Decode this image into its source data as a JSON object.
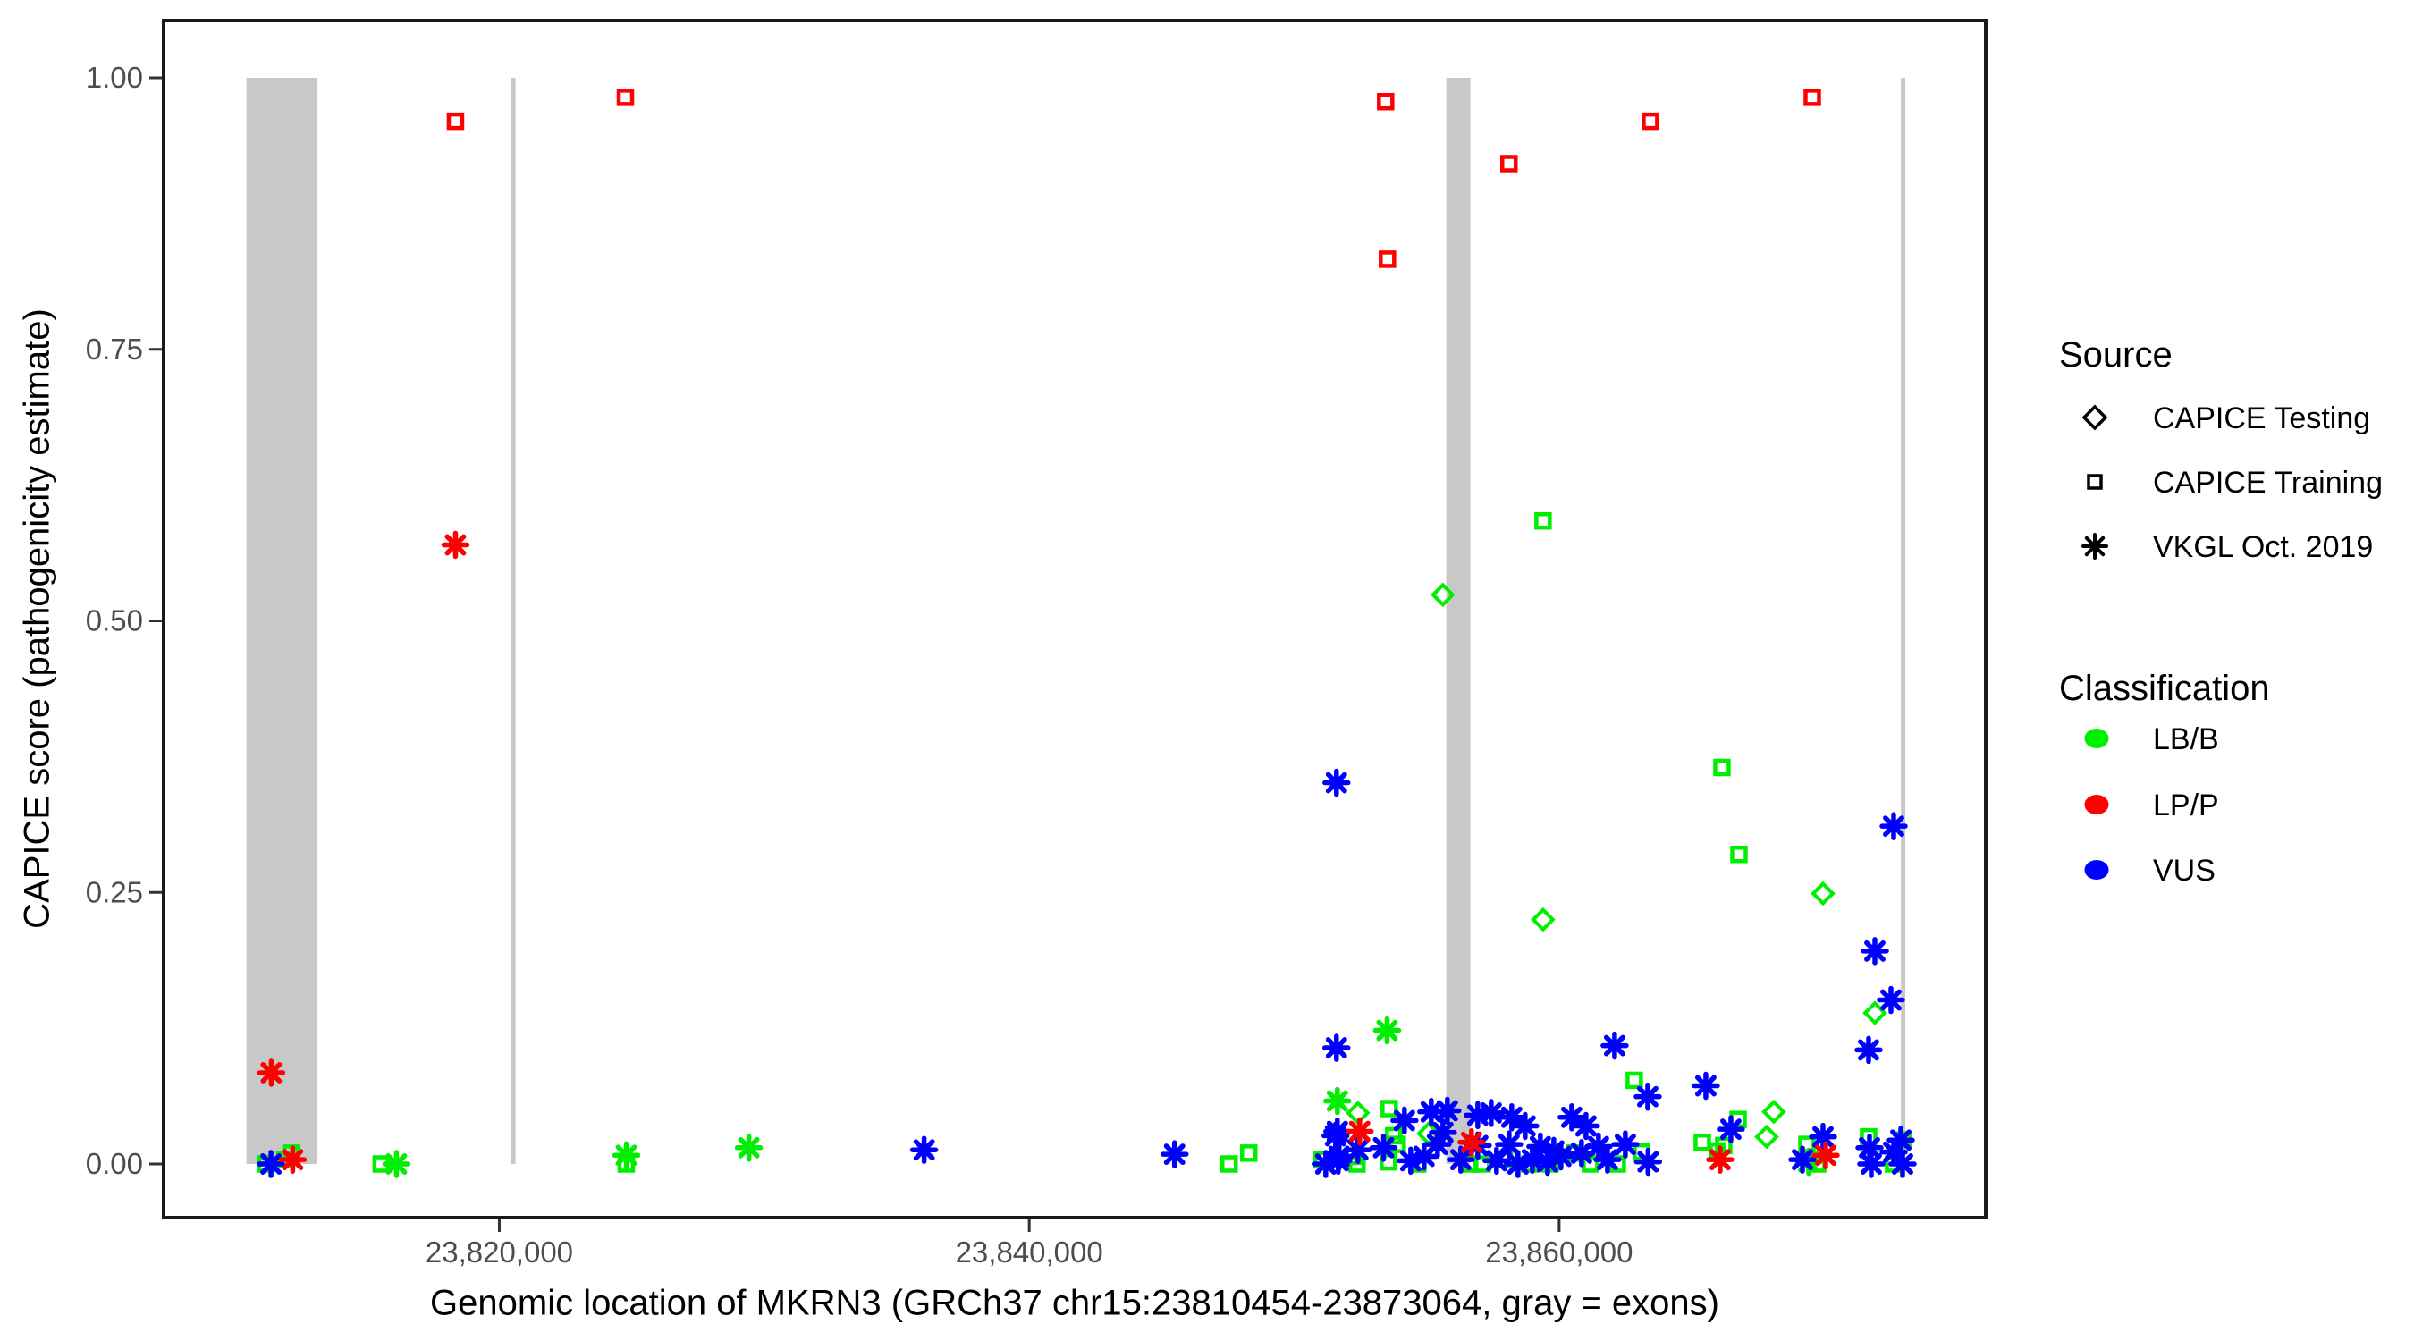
{
  "chart_data": {
    "type": "scatter",
    "xlabel": "Genomic location of MKRN3 (GRCh37 chr15:23810454-23873064, gray = exons)",
    "ylabel": "CAPICE score (pathogenicity estimate)",
    "xlim": [
      23807330,
      23876100
    ],
    "ylim": [
      -0.053,
      1.053
    ],
    "grid": false,
    "x_ticks": [
      {
        "value": 23820000,
        "label": "23,820,000"
      },
      {
        "value": 23840000,
        "label": "23,840,000"
      },
      {
        "value": 23860000,
        "label": "23,860,000"
      }
    ],
    "y_ticks": [
      {
        "value": 0.0,
        "label": "0.00"
      },
      {
        "value": 0.25,
        "label": "0.25"
      },
      {
        "value": 0.5,
        "label": "0.50"
      },
      {
        "value": 0.75,
        "label": "0.75"
      },
      {
        "value": 1.0,
        "label": "1.00"
      }
    ],
    "exon_color": "#C8C8C8",
    "exons": [
      {
        "start": 23810454,
        "end": 23813120
      },
      {
        "start": 23820450,
        "end": 23820610
      },
      {
        "start": 23855740,
        "end": 23856650
      },
      {
        "start": 23872900,
        "end": 23873064
      }
    ],
    "classification_colors": {
      "LB/B": "#00EE00",
      "LP/P": "#FF0000",
      "VUS": "#0000FF"
    },
    "legend": {
      "source": {
        "title": "Source",
        "items": [
          {
            "label": "CAPICE Testing",
            "shape": "diamond"
          },
          {
            "label": "CAPICE Training",
            "shape": "square"
          },
          {
            "label": "VKGL Oct. 2019",
            "shape": "asterisk"
          }
        ]
      },
      "classification": {
        "title": "Classification",
        "items": [
          {
            "label": "LB/B",
            "color": "#00EE00"
          },
          {
            "label": "LP/P",
            "color": "#FF0000"
          },
          {
            "label": "VUS",
            "color": "#0000FF"
          }
        ]
      }
    },
    "points": [
      {
        "pos": 23859392,
        "score": 0.592,
        "shape": "square",
        "cls": "LB/B"
      },
      {
        "pos": 23866144,
        "score": 0.365,
        "shape": "square",
        "cls": "LB/B"
      },
      {
        "pos": 23866786,
        "score": 0.285,
        "shape": "square",
        "cls": "LB/B"
      },
      {
        "pos": 23862835,
        "score": 0.077,
        "shape": "square",
        "cls": "LB/B"
      },
      {
        "pos": 23853587,
        "score": 0.051,
        "shape": "square",
        "cls": "LB/B"
      },
      {
        "pos": 23866752,
        "score": 0.041,
        "shape": "square",
        "cls": "LB/B"
      },
      {
        "pos": 23853755,
        "score": 0.026,
        "shape": "square",
        "cls": "LB/B"
      },
      {
        "pos": 23853891,
        "score": 0.018,
        "shape": "square",
        "cls": "LB/B"
      },
      {
        "pos": 23851055,
        "score": 0.004,
        "shape": "square",
        "cls": "LB/B"
      },
      {
        "pos": 23852236,
        "score": 0.007,
        "shape": "square",
        "cls": "LB/B"
      },
      {
        "pos": 23852371,
        "score": 0.0,
        "shape": "square",
        "cls": "LB/B"
      },
      {
        "pos": 23853553,
        "score": 0.002,
        "shape": "square",
        "cls": "LB/B"
      },
      {
        "pos": 23854667,
        "score": 0.0,
        "shape": "square",
        "cls": "LB/B"
      },
      {
        "pos": 23856624,
        "score": 0.0,
        "shape": "square",
        "cls": "LB/B"
      },
      {
        "pos": 23857097,
        "score": 0.0,
        "shape": "square",
        "cls": "LB/B"
      },
      {
        "pos": 23857941,
        "score": 0.004,
        "shape": "square",
        "cls": "LB/B"
      },
      {
        "pos": 23858886,
        "score": 0.0,
        "shape": "square",
        "cls": "LB/B"
      },
      {
        "pos": 23859663,
        "score": 0.0,
        "shape": "square",
        "cls": "LB/B"
      },
      {
        "pos": 23860574,
        "score": 0.01,
        "shape": "square",
        "cls": "LB/B"
      },
      {
        "pos": 23861182,
        "score": 0.0,
        "shape": "square",
        "cls": "LB/B"
      },
      {
        "pos": 23862194,
        "score": 0.0,
        "shape": "square",
        "cls": "LB/B"
      },
      {
        "pos": 23863106,
        "score": 0.011,
        "shape": "square",
        "cls": "LB/B"
      },
      {
        "pos": 23865401,
        "score": 0.02,
        "shape": "square",
        "cls": "LB/B"
      },
      {
        "pos": 23865975,
        "score": 0.012,
        "shape": "square",
        "cls": "LB/B"
      },
      {
        "pos": 23866211,
        "score": 0.017,
        "shape": "square",
        "cls": "LB/B"
      },
      {
        "pos": 23869350,
        "score": 0.018,
        "shape": "square",
        "cls": "LB/B"
      },
      {
        "pos": 23869755,
        "score": 0.0,
        "shape": "square",
        "cls": "LB/B"
      },
      {
        "pos": 23871679,
        "score": 0.025,
        "shape": "square",
        "cls": "LB/B"
      },
      {
        "pos": 23872996,
        "score": 0.022,
        "shape": "square",
        "cls": "LB/B"
      },
      {
        "pos": 23872624,
        "score": 0.0,
        "shape": "square",
        "cls": "LB/B"
      },
      {
        "pos": 23811190,
        "score": 0.0,
        "shape": "square",
        "cls": "LB/B"
      },
      {
        "pos": 23811899,
        "score": 0.004,
        "shape": "square",
        "cls": "LB/B"
      },
      {
        "pos": 23812135,
        "score": 0.01,
        "shape": "square",
        "cls": "LB/B"
      },
      {
        "pos": 23815544,
        "score": 0.0,
        "shape": "square",
        "cls": "LB/B"
      },
      {
        "pos": 23824793,
        "score": 0.0,
        "shape": "square",
        "cls": "LB/B"
      },
      {
        "pos": 23847544,
        "score": 0.0,
        "shape": "square",
        "cls": "LB/B"
      },
      {
        "pos": 23848287,
        "score": 0.01,
        "shape": "square",
        "cls": "LB/B"
      },
      {
        "pos": 23855612,
        "score": 0.524,
        "shape": "diamond",
        "cls": "LB/B"
      },
      {
        "pos": 23869958,
        "score": 0.249,
        "shape": "diamond",
        "cls": "LB/B"
      },
      {
        "pos": 23859392,
        "score": 0.225,
        "shape": "diamond",
        "cls": "LB/B"
      },
      {
        "pos": 23871916,
        "score": 0.139,
        "shape": "diamond",
        "cls": "LB/B"
      },
      {
        "pos": 23868101,
        "score": 0.048,
        "shape": "diamond",
        "cls": "LB/B"
      },
      {
        "pos": 23852405,
        "score": 0.047,
        "shape": "diamond",
        "cls": "LB/B"
      },
      {
        "pos": 23855072,
        "score": 0.028,
        "shape": "diamond",
        "cls": "LB/B"
      },
      {
        "pos": 23867831,
        "score": 0.025,
        "shape": "diamond",
        "cls": "LB/B"
      },
      {
        "pos": 23853507,
        "score": 0.123,
        "shape": "asterisk",
        "cls": "LB/B"
      },
      {
        "pos": 23851629,
        "score": 0.058,
        "shape": "asterisk",
        "cls": "LB/B"
      },
      {
        "pos": 23816118,
        "score": 0.0,
        "shape": "asterisk",
        "cls": "LB/B"
      },
      {
        "pos": 23824793,
        "score": 0.008,
        "shape": "asterisk",
        "cls": "LB/B"
      },
      {
        "pos": 23829418,
        "score": 0.015,
        "shape": "asterisk",
        "cls": "LB/B"
      },
      {
        "pos": 23869417,
        "score": 0.002,
        "shape": "asterisk",
        "cls": "LB/B"
      },
      {
        "pos": 23851595,
        "score": 0.351,
        "shape": "asterisk",
        "cls": "VUS"
      },
      {
        "pos": 23872624,
        "score": 0.311,
        "shape": "asterisk",
        "cls": "VUS"
      },
      {
        "pos": 23871916,
        "score": 0.196,
        "shape": "asterisk",
        "cls": "VUS"
      },
      {
        "pos": 23872523,
        "score": 0.151,
        "shape": "asterisk",
        "cls": "VUS"
      },
      {
        "pos": 23871679,
        "score": 0.105,
        "shape": "asterisk",
        "cls": "VUS"
      },
      {
        "pos": 23851595,
        "score": 0.107,
        "shape": "asterisk",
        "cls": "VUS"
      },
      {
        "pos": 23862093,
        "score": 0.109,
        "shape": "asterisk",
        "cls": "VUS"
      },
      {
        "pos": 23865536,
        "score": 0.072,
        "shape": "asterisk",
        "cls": "VUS"
      },
      {
        "pos": 23863342,
        "score": 0.062,
        "shape": "asterisk",
        "cls": "VUS"
      },
      {
        "pos": 23845485,
        "score": 0.009,
        "shape": "asterisk",
        "cls": "VUS"
      },
      {
        "pos": 23836034,
        "score": 0.013,
        "shape": "asterisk",
        "cls": "VUS"
      },
      {
        "pos": 23811382,
        "score": 0.0,
        "shape": "asterisk",
        "cls": "VUS"
      },
      {
        "pos": 23851629,
        "score": 0.03,
        "shape": "asterisk",
        "cls": "VUS"
      },
      {
        "pos": 23851696,
        "score": 0.007,
        "shape": "asterisk",
        "cls": "VUS"
      },
      {
        "pos": 23851190,
        "score": 0.0,
        "shape": "asterisk",
        "cls": "VUS"
      },
      {
        "pos": 23851561,
        "score": 0.026,
        "shape": "asterisk",
        "cls": "VUS"
      },
      {
        "pos": 23851662,
        "score": 0.003,
        "shape": "asterisk",
        "cls": "VUS"
      },
      {
        "pos": 23852405,
        "score": 0.013,
        "shape": "asterisk",
        "cls": "VUS"
      },
      {
        "pos": 23853373,
        "score": 0.015,
        "shape": "asterisk",
        "cls": "VUS"
      },
      {
        "pos": 23854161,
        "score": 0.04,
        "shape": "asterisk",
        "cls": "VUS"
      },
      {
        "pos": 23855173,
        "score": 0.048,
        "shape": "asterisk",
        "cls": "VUS"
      },
      {
        "pos": 23855612,
        "score": 0.029,
        "shape": "asterisk",
        "cls": "VUS"
      },
      {
        "pos": 23855409,
        "score": 0.018,
        "shape": "asterisk",
        "cls": "VUS"
      },
      {
        "pos": 23854903,
        "score": 0.007,
        "shape": "asterisk",
        "cls": "VUS"
      },
      {
        "pos": 23854397,
        "score": 0.003,
        "shape": "asterisk",
        "cls": "VUS"
      },
      {
        "pos": 23855781,
        "score": 0.049,
        "shape": "asterisk",
        "cls": "VUS"
      },
      {
        "pos": 23856929,
        "score": 0.045,
        "shape": "asterisk",
        "cls": "VUS"
      },
      {
        "pos": 23857435,
        "score": 0.047,
        "shape": "asterisk",
        "cls": "VUS"
      },
      {
        "pos": 23858211,
        "score": 0.043,
        "shape": "asterisk",
        "cls": "VUS"
      },
      {
        "pos": 23858717,
        "score": 0.035,
        "shape": "asterisk",
        "cls": "VUS"
      },
      {
        "pos": 23859291,
        "score": 0.016,
        "shape": "asterisk",
        "cls": "VUS"
      },
      {
        "pos": 23859798,
        "score": 0.012,
        "shape": "asterisk",
        "cls": "VUS"
      },
      {
        "pos": 23858987,
        "score": 0.004,
        "shape": "asterisk",
        "cls": "VUS"
      },
      {
        "pos": 23858110,
        "score": 0.018,
        "shape": "asterisk",
        "cls": "VUS"
      },
      {
        "pos": 23856929,
        "score": 0.017,
        "shape": "asterisk",
        "cls": "VUS"
      },
      {
        "pos": 23856287,
        "score": 0.004,
        "shape": "asterisk",
        "cls": "VUS"
      },
      {
        "pos": 23857637,
        "score": 0.003,
        "shape": "asterisk",
        "cls": "VUS"
      },
      {
        "pos": 23858447,
        "score": 0.0,
        "shape": "asterisk",
        "cls": "VUS"
      },
      {
        "pos": 23859561,
        "score": 0.002,
        "shape": "asterisk",
        "cls": "VUS"
      },
      {
        "pos": 23860068,
        "score": 0.007,
        "shape": "asterisk",
        "cls": "VUS"
      },
      {
        "pos": 23860473,
        "score": 0.043,
        "shape": "asterisk",
        "cls": "VUS"
      },
      {
        "pos": 23861013,
        "score": 0.035,
        "shape": "asterisk",
        "cls": "VUS"
      },
      {
        "pos": 23861485,
        "score": 0.016,
        "shape": "asterisk",
        "cls": "VUS"
      },
      {
        "pos": 23860844,
        "score": 0.01,
        "shape": "asterisk",
        "cls": "VUS"
      },
      {
        "pos": 23861823,
        "score": 0.004,
        "shape": "asterisk",
        "cls": "VUS"
      },
      {
        "pos": 23862498,
        "score": 0.018,
        "shape": "asterisk",
        "cls": "VUS"
      },
      {
        "pos": 23863355,
        "score": 0.002,
        "shape": "asterisk",
        "cls": "VUS"
      },
      {
        "pos": 23866481,
        "score": 0.032,
        "shape": "asterisk",
        "cls": "VUS"
      },
      {
        "pos": 23869958,
        "score": 0.025,
        "shape": "asterisk",
        "cls": "VUS"
      },
      {
        "pos": 23871713,
        "score": 0.015,
        "shape": "asterisk",
        "cls": "VUS"
      },
      {
        "pos": 23869182,
        "score": 0.004,
        "shape": "asterisk",
        "cls": "VUS"
      },
      {
        "pos": 23871780,
        "score": 0.0,
        "shape": "asterisk",
        "cls": "VUS"
      },
      {
        "pos": 23872894,
        "score": 0.022,
        "shape": "asterisk",
        "cls": "VUS"
      },
      {
        "pos": 23872962,
        "score": 0.0,
        "shape": "asterisk",
        "cls": "VUS"
      },
      {
        "pos": 23872624,
        "score": 0.011,
        "shape": "asterisk",
        "cls": "VUS"
      },
      {
        "pos": 23818346,
        "score": 0.57,
        "shape": "asterisk",
        "cls": "LP/P"
      },
      {
        "pos": 23811392,
        "score": 0.084,
        "shape": "asterisk",
        "cls": "LP/P"
      },
      {
        "pos": 23812203,
        "score": 0.004,
        "shape": "asterisk",
        "cls": "LP/P"
      },
      {
        "pos": 23852472,
        "score": 0.03,
        "shape": "asterisk",
        "cls": "LP/P"
      },
      {
        "pos": 23856692,
        "score": 0.02,
        "shape": "asterisk",
        "cls": "LP/P"
      },
      {
        "pos": 23866076,
        "score": 0.004,
        "shape": "asterisk",
        "cls": "LP/P"
      },
      {
        "pos": 23870059,
        "score": 0.008,
        "shape": "asterisk",
        "cls": "LP/P"
      },
      {
        "pos": 23818346,
        "score": 0.96,
        "shape": "square",
        "cls": "LP/P"
      },
      {
        "pos": 23824759,
        "score": 0.982,
        "shape": "square",
        "cls": "LP/P"
      },
      {
        "pos": 23853452,
        "score": 0.978,
        "shape": "square",
        "cls": "LP/P"
      },
      {
        "pos": 23853519,
        "score": 0.833,
        "shape": "square",
        "cls": "LP/P"
      },
      {
        "pos": 23858106,
        "score": 0.921,
        "shape": "square",
        "cls": "LP/P"
      },
      {
        "pos": 23863443,
        "score": 0.96,
        "shape": "square",
        "cls": "LP/P"
      },
      {
        "pos": 23869553,
        "score": 0.982,
        "shape": "square",
        "cls": "LP/P"
      }
    ]
  }
}
